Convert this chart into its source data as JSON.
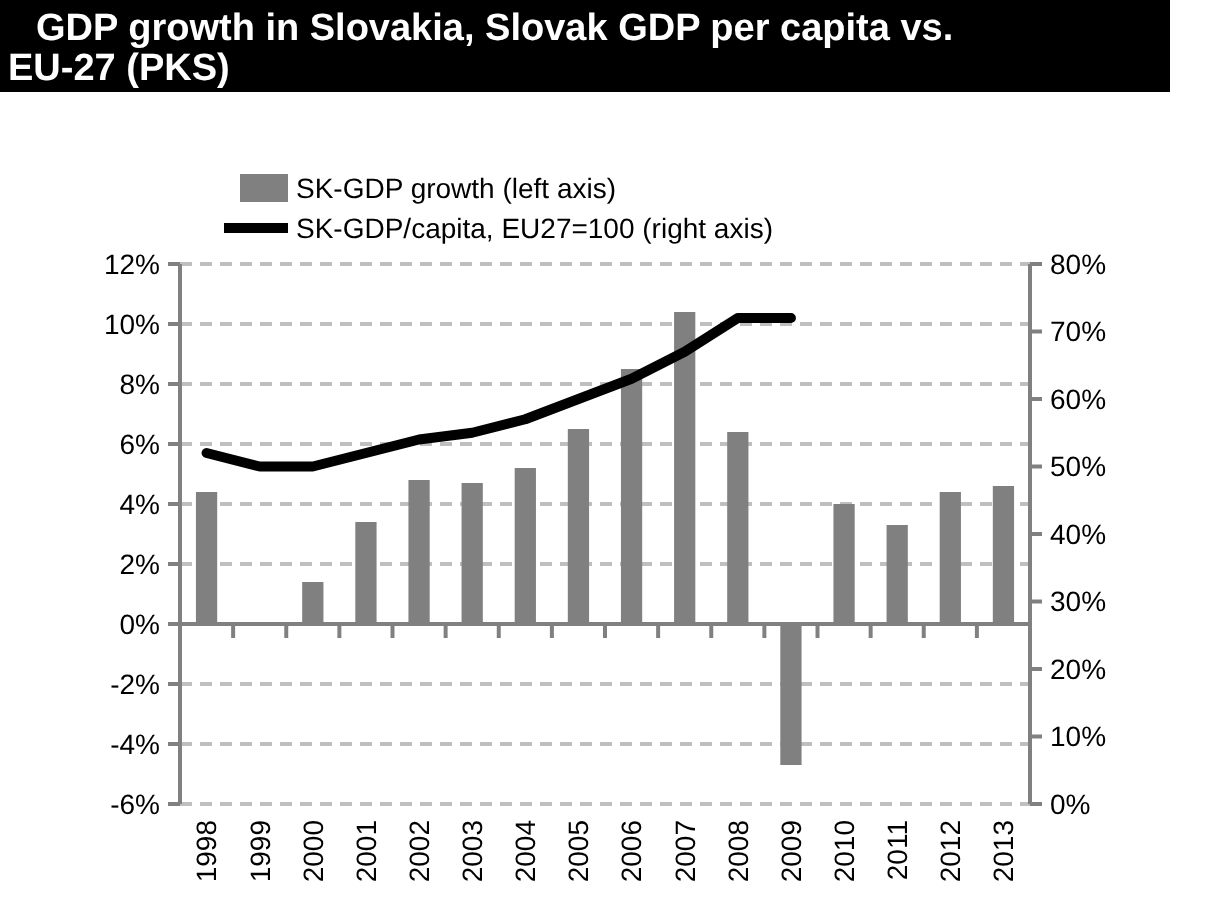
{
  "chart_data": {
    "type": "bar",
    "title": "GDP growth in Slovakia, Slovak GDP per capita vs. EU-27 (PKS)",
    "categories": [
      "1998",
      "1999",
      "2000",
      "2001",
      "2002",
      "2003",
      "2004",
      "2005",
      "2006",
      "2007",
      "2008",
      "2009",
      "2010",
      "2011",
      "2012",
      "2013"
    ],
    "series": [
      {
        "name": "SK-GDP growth (left axis)",
        "color": "#808080",
        "values": [
          4.4,
          0,
          1.4,
          3.4,
          4.8,
          4.7,
          5.2,
          6.5,
          8.5,
          10.4,
          6.4,
          -4.7,
          4.0,
          3.3,
          4.4,
          4.6
        ]
      },
      {
        "name": "SK-GDP/capita, EU27=100 (right axis)",
        "type": "line",
        "axis": "y2",
        "color": "#000000",
        "values": [
          52,
          50,
          50,
          52,
          54,
          55,
          57,
          60,
          63,
          67,
          72,
          72,
          null,
          null,
          null,
          null
        ]
      }
    ],
    "ylim": [
      -6,
      12
    ],
    "yticks": [
      {
        "value": -6,
        "label": "-6%"
      },
      {
        "value": -4,
        "label": "-4%"
      },
      {
        "value": -2,
        "label": "-2%"
      },
      {
        "value": 0,
        "label": "0%"
      },
      {
        "value": 2,
        "label": "2%"
      },
      {
        "value": 4,
        "label": "4%"
      },
      {
        "value": 6,
        "label": "6%"
      },
      {
        "value": 8,
        "label": "8%"
      },
      {
        "value": 10,
        "label": "10%"
      },
      {
        "value": 12,
        "label": "12%"
      }
    ],
    "y2lim": [
      0,
      80
    ],
    "y2ticks": [
      {
        "value": 0,
        "label": "0%"
      },
      {
        "value": 10,
        "label": "10%"
      },
      {
        "value": 20,
        "label": "20%"
      },
      {
        "value": 30,
        "label": "30%"
      },
      {
        "value": 40,
        "label": "40%"
      },
      {
        "value": 50,
        "label": "50%"
      },
      {
        "value": 60,
        "label": "60%"
      },
      {
        "value": 70,
        "label": "70%"
      },
      {
        "value": 80,
        "label": "80%"
      }
    ],
    "grid": "y",
    "legend": "top left",
    "marker": "none",
    "line_style": "solid"
  }
}
